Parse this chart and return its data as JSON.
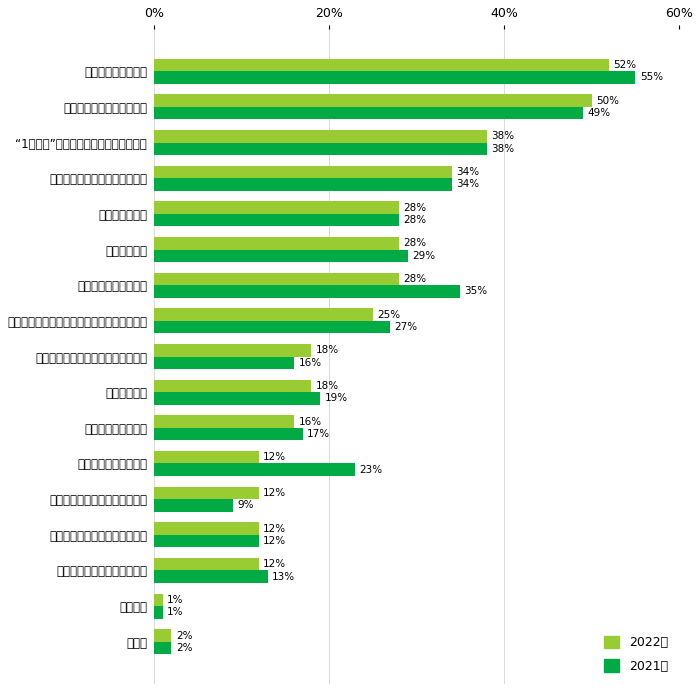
{
  "categories": [
    "シフトの融通が利く",
    "隙間時間・短時間でできる",
    "“1日のみ”など働く期間が決まっている",
    "職場から自宅までの距離が近い",
    "仕事内容が簡単",
    "高時給である",
    "すぐに働き始められる",
    "日払い・週払いなどすぐに給与が受け取れる",
    "これまでの経験・スキルが活かせる",
    "長期で働ける",
    "夕方～夜間にできる",
    "週末・休日だけできる",
    "在宅・リモートワークができる",
    "新しい知識やスキルが身につく",
    "趣味・好きなことが活かせる",
    "特にない",
    "その他"
  ],
  "values_2022": [
    52,
    50,
    38,
    34,
    28,
    28,
    28,
    25,
    18,
    18,
    16,
    12,
    12,
    12,
    12,
    1,
    2
  ],
  "values_2021": [
    55,
    49,
    38,
    34,
    28,
    29,
    35,
    27,
    16,
    19,
    17,
    23,
    9,
    12,
    13,
    1,
    2
  ],
  "color_2022": "#99cc33",
  "color_2021": "#00aa44",
  "label_2022": "2022年",
  "label_2021": "2021年",
  "xlim": [
    0,
    60
  ],
  "xticks": [
    0,
    20,
    40,
    60
  ],
  "xticklabels": [
    "0%",
    "20%",
    "40%",
    "60%"
  ],
  "bar_height": 0.35,
  "figsize": [
    7.0,
    6.91
  ],
  "dpi": 100,
  "background_color": "#ffffff",
  "label_fontsize": 8.5,
  "tick_fontsize": 9,
  "value_fontsize": 7.5
}
